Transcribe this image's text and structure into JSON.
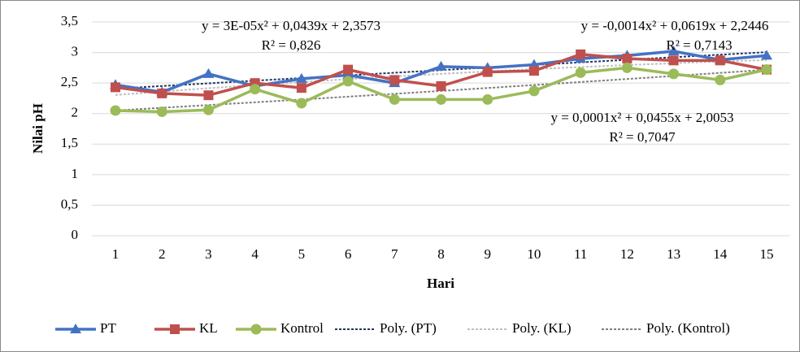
{
  "chart_data": {
    "type": "line",
    "x_label": "Hari",
    "y_label": "Nilai pH",
    "x": [
      1,
      2,
      3,
      4,
      5,
      6,
      7,
      8,
      9,
      10,
      11,
      12,
      13,
      14,
      15
    ],
    "xlim": [
      0.5,
      15.5
    ],
    "ylim": [
      0,
      3.5
    ],
    "yticks": [
      0,
      {
        "value": 0.5,
        "label": "0,5"
      },
      1,
      {
        "value": 1.5,
        "label": "1,5"
      },
      2,
      {
        "value": 2.5,
        "label": "2,5"
      },
      3,
      {
        "value": 3.5,
        "label": "3,5"
      }
    ],
    "grid": true,
    "legend": "bottom",
    "series": [
      {
        "name": "PT",
        "color": "#4472c4",
        "marker": "triangle",
        "values": [
          2.47,
          2.35,
          2.65,
          2.45,
          2.57,
          2.63,
          2.5,
          2.77,
          2.75,
          2.8,
          2.9,
          2.95,
          3.02,
          2.88,
          2.95
        ]
      },
      {
        "name": "KL",
        "color": "#c0504d",
        "marker": "square",
        "values": [
          2.43,
          2.33,
          2.3,
          2.5,
          2.42,
          2.72,
          2.55,
          2.45,
          2.68,
          2.7,
          2.97,
          2.9,
          2.87,
          2.87,
          2.72
        ]
      },
      {
        "name": "Kontrol",
        "color": "#9bbb59",
        "marker": "circle",
        "values": [
          2.05,
          2.03,
          2.06,
          2.4,
          2.17,
          2.53,
          2.23,
          2.23,
          2.23,
          2.37,
          2.67,
          2.75,
          2.65,
          2.55,
          2.72
        ]
      }
    ],
    "trendlines": [
      {
        "name": "Poly. (PT)",
        "color": "#1f3864",
        "degree": 2
      },
      {
        "name": "Poly. (KL)",
        "color": "#bfbfbf",
        "degree": 2
      },
      {
        "name": "Poly. (Kontrol)",
        "color": "#7f7f7f",
        "degree": 2
      }
    ],
    "annotations": [
      {
        "equation": "y = 3E-05x² + 0,0439x + 2,3573",
        "r2": "R² = 0,826"
      },
      {
        "equation": "y = -0,0014x² + 0,0619x + 2,2446",
        "r2": "R² = 0,7143"
      },
      {
        "equation": "y = 0,0001x² + 0,0455x + 2,0053",
        "r2": "R² = 0,7047"
      }
    ]
  }
}
